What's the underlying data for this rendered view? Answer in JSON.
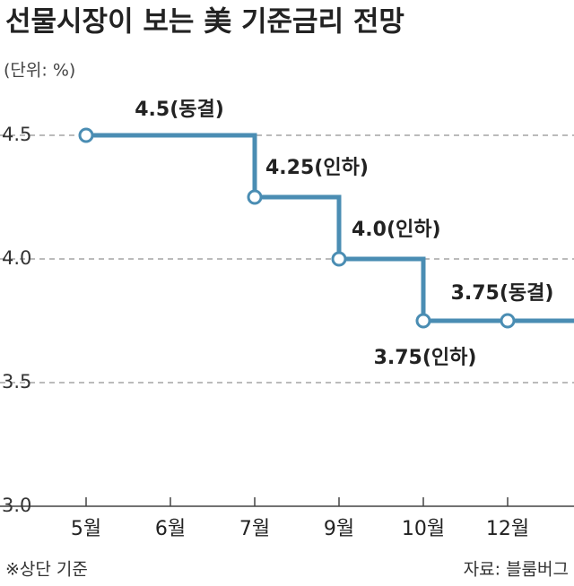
{
  "chart_data": {
    "type": "step-line",
    "title": "선물시장이 보는 美 기준금리 전망",
    "subtitle": "(단위: %)",
    "note": "※상단 기준",
    "source": "자료: 블룸버그",
    "categories": [
      "5월",
      "6월",
      "7월",
      "9월",
      "10월",
      "12월"
    ],
    "values": [
      4.5,
      4.5,
      4.25,
      4.0,
      3.75,
      3.75
    ],
    "value_labels": [
      "4.5(동결)",
      null,
      "4.25(인하)",
      "4.0(인하)",
      "3.75(인하)",
      "3.75(동결)"
    ],
    "color": "#4a8db3",
    "ylim": [
      3.0,
      4.5
    ],
    "yticks": [
      {
        "value": 3.0,
        "label": "3.0"
      },
      3.5,
      {
        "value": 4.0,
        "label": "4.0"
      },
      4.5
    ],
    "grid": true
  }
}
